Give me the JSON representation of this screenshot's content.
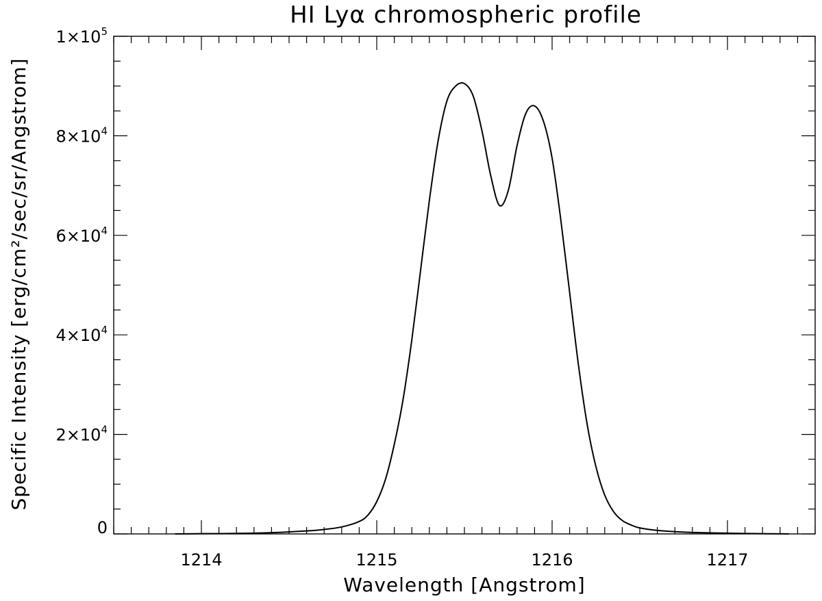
{
  "chart_data": {
    "type": "line",
    "title": "HI Lyα chromospheric profile",
    "xlabel": "Wavelength [Angstrom]",
    "ylabel": "Specific Intensity [erg/cm²/sec/sr/Angstrom]",
    "xlim": [
      1213.5,
      1217.5
    ],
    "ylim": [
      0,
      100000
    ],
    "x_ticks": [
      1214,
      1215,
      1216,
      1217
    ],
    "x_tick_labels": [
      "1214",
      "1215",
      "1216",
      "1217"
    ],
    "y_ticks": [
      0,
      20000,
      40000,
      60000,
      80000,
      100000
    ],
    "y_tick_labels": [
      {
        "mantissa": "0",
        "base": "",
        "exp": ""
      },
      {
        "mantissa": "2",
        "base": "×10",
        "exp": "4"
      },
      {
        "mantissa": "4",
        "base": "×10",
        "exp": "4"
      },
      {
        "mantissa": "6",
        "base": "×10",
        "exp": "4"
      },
      {
        "mantissa": "8",
        "base": "×10",
        "exp": "4"
      },
      {
        "mantissa": "1",
        "base": "×10",
        "exp": "5"
      }
    ],
    "grid": false,
    "series": [
      {
        "color": "#000000",
        "x": [
          1213.85,
          1214.0,
          1214.2,
          1214.4,
          1214.6,
          1214.7,
          1214.8,
          1214.9,
          1214.95,
          1215.0,
          1215.05,
          1215.1,
          1215.15,
          1215.2,
          1215.25,
          1215.3,
          1215.35,
          1215.4,
          1215.45,
          1215.5,
          1215.55,
          1215.6,
          1215.65,
          1215.7,
          1215.75,
          1215.8,
          1215.85,
          1215.9,
          1215.95,
          1216.0,
          1216.05,
          1216.1,
          1216.15,
          1216.2,
          1216.25,
          1216.3,
          1216.35,
          1216.4,
          1216.45,
          1216.5,
          1216.6,
          1216.7,
          1216.8,
          1217.0,
          1217.2,
          1217.35
        ],
        "y": [
          0,
          50,
          100,
          250,
          600,
          900,
          1400,
          2500,
          3800,
          6500,
          11000,
          18000,
          27000,
          39000,
          53000,
          67000,
          79000,
          87000,
          90000,
          90500,
          88000,
          81000,
          72000,
          66000,
          69000,
          78000,
          84500,
          86000,
          83000,
          75500,
          63000,
          48500,
          34000,
          22000,
          13500,
          7800,
          4500,
          2700,
          1800,
          1200,
          700,
          450,
          300,
          150,
          50,
          0
        ]
      }
    ]
  }
}
